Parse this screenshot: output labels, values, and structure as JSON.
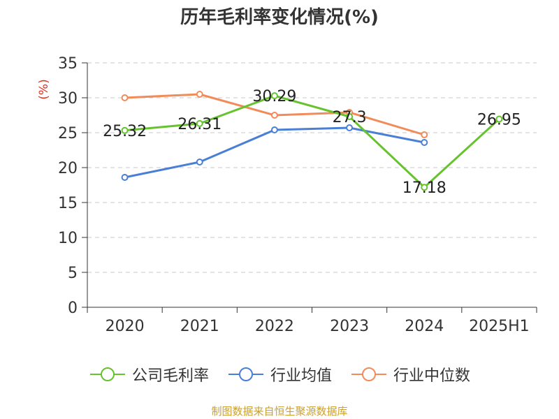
{
  "chart_data": {
    "type": "line",
    "title": "历年毛利率变化情况(%)",
    "ylabel": "(%)",
    "xlabel": "",
    "categories": [
      "2020",
      "2021",
      "2022",
      "2023",
      "2024",
      "2025H1"
    ],
    "ylim": [
      0,
      35
    ],
    "yticks": [
      0,
      5,
      10,
      15,
      20,
      25,
      30,
      35
    ],
    "grid": true,
    "legend_position": "bottom",
    "series": [
      {
        "name": "公司毛利率",
        "color": "#66c22d",
        "values": [
          25.32,
          26.31,
          30.29,
          27.3,
          17.18,
          26.95
        ],
        "labels": [
          "25.32",
          "26.31",
          "30.29",
          "27.3",
          "17.18",
          "26.95"
        ]
      },
      {
        "name": "行业均值",
        "color": "#4a7fd6",
        "values": [
          18.6,
          20.8,
          25.4,
          25.7,
          23.6,
          null
        ]
      },
      {
        "name": "行业中位数",
        "color": "#f18c5a",
        "values": [
          30.0,
          30.5,
          27.5,
          27.9,
          24.7,
          null
        ]
      }
    ]
  },
  "footer": {
    "source": "制图数据来自恒生聚源数据库"
  }
}
